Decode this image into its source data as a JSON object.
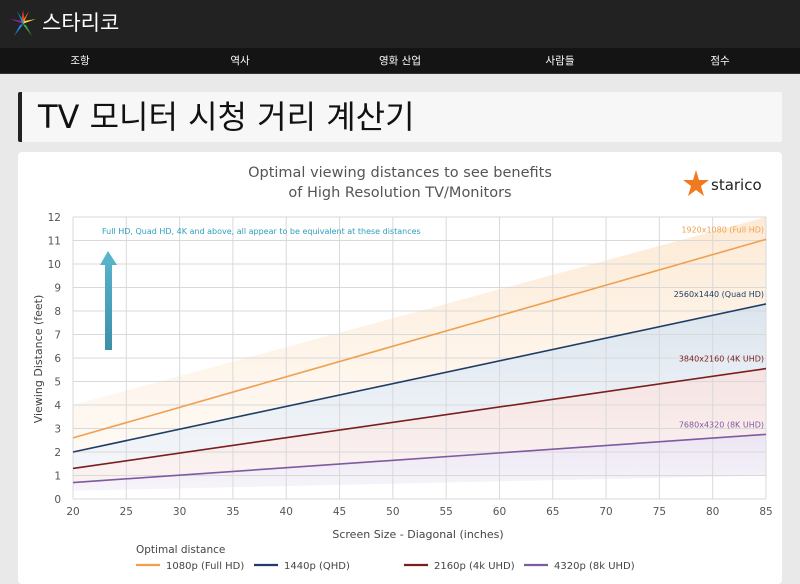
{
  "header": {
    "brand": "스타리코",
    "nav": [
      "조항",
      "역사",
      "영화 산업",
      "사람들",
      "점수"
    ]
  },
  "page": {
    "title": "TV 모니터 시청 거리 계산기"
  },
  "chart_data": {
    "type": "line",
    "title": "Optimal viewing distances to see benefits",
    "subtitle": "of High Resolution TV/Monitors",
    "logo_text": "starico",
    "xlabel": "Screen Size - Diagonal (inches)",
    "ylabel": "Viewing Distance (feet)",
    "xlim": [
      20,
      85
    ],
    "ylim": [
      0,
      12
    ],
    "x_ticks": [
      20,
      25,
      30,
      35,
      40,
      45,
      50,
      55,
      60,
      65,
      70,
      75,
      80,
      85
    ],
    "y_ticks": [
      0,
      1,
      2,
      3,
      4,
      5,
      6,
      7,
      8,
      9,
      10,
      11,
      12
    ],
    "grid": true,
    "annotation": "Full HD, Quad HD, 4K and above, all appear to be equivalent at these distances",
    "legend_title": "Optimal distance",
    "legend_position": "bottom",
    "series": [
      {
        "name": "1080p (Full HD)",
        "end_label": "1920x1080 (Full HD)",
        "color": "#f0a050",
        "x": [
          20,
          85
        ],
        "y": [
          2.6,
          11.05
        ]
      },
      {
        "name": "1440p (QHD)",
        "end_label": "2560x1440 (Quad HD)",
        "color": "#1f3d66",
        "x": [
          20,
          85
        ],
        "y": [
          2.0,
          8.3
        ]
      },
      {
        "name": "2160p (4k UHD)",
        "end_label": "3840x2160 (4K UHD)",
        "color": "#7a1e1e",
        "x": [
          20,
          85
        ],
        "y": [
          1.3,
          5.55
        ]
      },
      {
        "name": "4320p (8k UHD)",
        "end_label": "7680x4320 (8K UHD)",
        "color": "#7e5aa0",
        "x": [
          20,
          85
        ],
        "y": [
          0.7,
          2.75
        ]
      }
    ],
    "colors": {
      "grid": "#d9d9d9",
      "text": "#555555",
      "annotation": "#2f9fc0",
      "arrow": "#4aa8c0",
      "logo_star": "#f07a20"
    }
  }
}
